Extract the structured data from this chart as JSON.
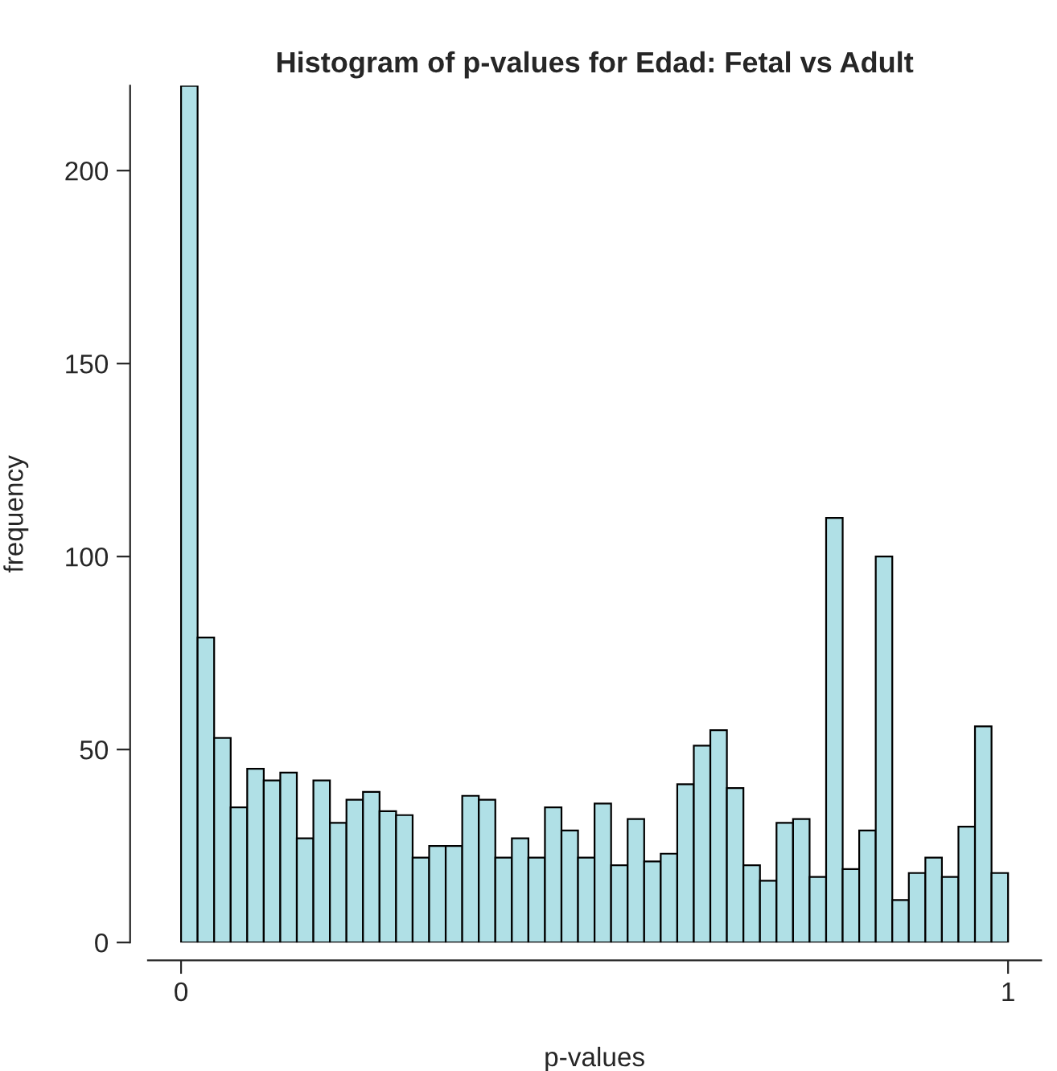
{
  "chart_data": {
    "type": "histogram",
    "title": "Histogram of p-values for Edad: Fetal vs Adult",
    "xlabel": "p-values",
    "ylabel": "frequency",
    "bins": [
      0,
      0.02,
      0.04,
      0.06,
      0.08,
      0.1,
      0.12,
      0.14,
      0.16,
      0.18,
      0.2,
      0.22,
      0.24,
      0.26,
      0.28,
      0.3,
      0.32,
      0.34,
      0.36,
      0.38,
      0.4,
      0.42,
      0.44,
      0.46,
      0.48,
      0.5,
      0.52,
      0.54,
      0.56,
      0.58,
      0.6,
      0.62,
      0.64,
      0.66,
      0.68,
      0.7,
      0.72,
      0.74,
      0.76,
      0.78,
      0.8,
      0.82,
      0.84,
      0.86,
      0.88,
      0.9,
      0.92,
      0.94,
      0.96,
      0.98,
      1
    ],
    "values": [
      222,
      79,
      53,
      35,
      45,
      42,
      44,
      27,
      42,
      31,
      37,
      39,
      34,
      33,
      22,
      25,
      25,
      38,
      37,
      22,
      27,
      22,
      35,
      29,
      22,
      36,
      20,
      32,
      21,
      23,
      41,
      51,
      55,
      40,
      20,
      16,
      31,
      32,
      17,
      110,
      19,
      29,
      100,
      11,
      18,
      22,
      17,
      30,
      56,
      18
    ],
    "color": "#b0e0e6",
    "xlim": [
      -0.04,
      1.04
    ],
    "ylim": [
      0,
      222
    ],
    "xticks": [
      0,
      1
    ],
    "yticks": [
      0,
      50,
      100,
      150,
      200
    ],
    "grid": false
  }
}
